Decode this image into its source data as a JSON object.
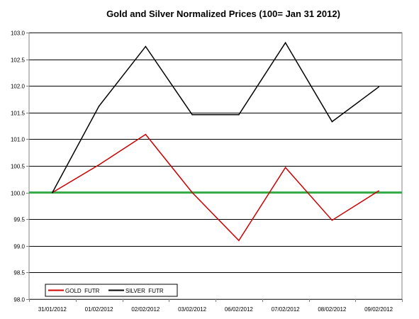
{
  "chart_data": {
    "type": "line",
    "title": "Gold and Silver Normalized Prices  (100= Jan 31 2012)",
    "categories": [
      "31/01/2012",
      "01/02/2012",
      "02/02/2012",
      "03/02/2012",
      "06/02/2012",
      "07/02/2012",
      "08/02/2012",
      "09/02/2012"
    ],
    "ylim": [
      98.0,
      103.0
    ],
    "yticks": [
      "98.0",
      "98.5",
      "99.0",
      "99.5",
      "100.0",
      "100.5",
      "101.0",
      "101.5",
      "102.0",
      "102.5",
      "103.0"
    ],
    "grid": true,
    "legend_position": "bottom-left",
    "series": [
      {
        "name": "GOLD  FUTR",
        "color": "#cc0000",
        "values": [
          100.0,
          100.52,
          101.09,
          100.0,
          99.1,
          100.47,
          99.48,
          100.03
        ]
      },
      {
        "name": "SILVER  FUTR",
        "color": "#000000",
        "values": [
          100.0,
          101.62,
          102.74,
          101.46,
          101.46,
          102.81,
          101.33,
          101.98
        ]
      }
    ],
    "reference_line": {
      "value": 100.0,
      "color": "#33aa44"
    }
  }
}
